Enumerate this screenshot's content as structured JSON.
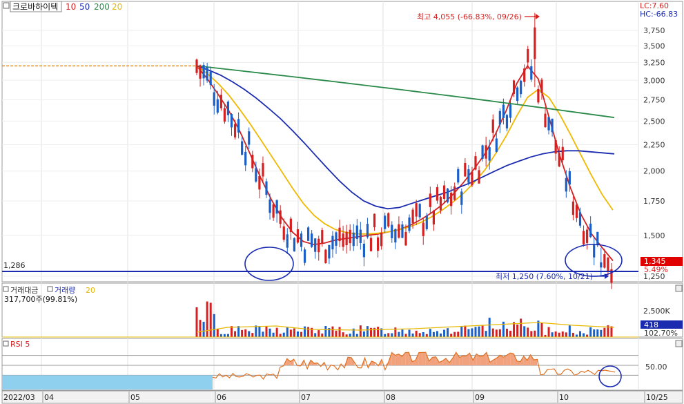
{
  "header": {
    "stock_name": "크로바하이텍",
    "ma_labels": [
      {
        "label": "10",
        "color": "#d42020"
      },
      {
        "label": "50",
        "color": "#1a2bb0"
      },
      {
        "label": "200",
        "color": "#2a8a4a"
      },
      {
        "label": "20",
        "color": "#e8b800"
      }
    ],
    "lc": "LC:7.60",
    "hc": "HC:-66.83"
  },
  "price_panel": {
    "high_annotation": "최고 4,055 (-66.83%, 09/26)",
    "low_annotation": "최저 1,250 (7.60%, 10/21)",
    "level_label": "1,286",
    "current_price": "1,345",
    "current_change": "5.49%",
    "y_ticks": [
      "3,750",
      "3,500",
      "3,250",
      "3,000",
      "2,750",
      "2,500",
      "2,250",
      "2,000",
      "1,750",
      "1,500",
      "1,250"
    ]
  },
  "volume_panel": {
    "label_a": "거래대금",
    "label_b": "거래량",
    "label_c": "20",
    "summary": "317,700주(99.81%)",
    "y_tick": "2,500K",
    "current_value": "418",
    "current_pct": "102.70%"
  },
  "rsi_panel": {
    "label": "RSI 5",
    "y_tick": "50.00"
  },
  "x_axis": {
    "labels": [
      "2022/03",
      "04",
      "05",
      "06",
      "07",
      "08",
      "09",
      "10",
      "10/25"
    ]
  },
  "colors": {
    "up": "#d42020",
    "down": "#1a5fc8",
    "ma10": "#d42020",
    "ma20": "#f0b800",
    "ma50": "#1a2bb0",
    "ma200": "#2a8a4a",
    "level": "#1a2bb0",
    "rsi_fill_low": "#8fd0ee",
    "rsi_fill_high": "#f1a27c"
  },
  "chart_data": {
    "type": "candlestick",
    "title": "크로바하이텍",
    "y_scale": "log",
    "ylim": [
      1200,
      4200
    ],
    "events": [
      {
        "date": "09/26",
        "type": "high",
        "value": 4055
      },
      {
        "date": "10/21",
        "type": "low",
        "value": 1250
      }
    ],
    "reference_level": 1286,
    "last_close": 1345,
    "series": [
      {
        "name": "10",
        "values": [
          3200,
          3020,
          2820,
          2620,
          2400,
          2160,
          1940,
          1760,
          1620,
          1520,
          1460,
          1440,
          1450,
          1470,
          1480,
          1490,
          1500,
          1510,
          1525,
          1540,
          1570,
          1610,
          1660,
          1720,
          1800,
          1900,
          2020,
          2160,
          2360,
          2620,
          2960,
          3200,
          3020,
          2550,
          2150,
          1860,
          1650,
          1510,
          1420,
          1340
        ]
      },
      {
        "name": "20",
        "values": [
          3200,
          3090,
          2960,
          2810,
          2640,
          2470,
          2300,
          2140,
          1990,
          1850,
          1730,
          1640,
          1580,
          1540,
          1520,
          1510,
          1510,
          1515,
          1525,
          1540,
          1560,
          1590,
          1630,
          1680,
          1740,
          1810,
          1900,
          2010,
          2160,
          2340,
          2560,
          2780,
          2880,
          2780,
          2580,
          2360,
          2150,
          1960,
          1800,
          1680
        ]
      },
      {
        "name": "50",
        "values": [
          3200,
          3140,
          3070,
          2980,
          2880,
          2770,
          2650,
          2530,
          2400,
          2270,
          2140,
          2020,
          1910,
          1820,
          1750,
          1710,
          1690,
          1700,
          1730,
          1760,
          1790,
          1820,
          1860,
          1900,
          1950,
          2000,
          2050,
          2090,
          2130,
          2160,
          2180,
          2190,
          2190,
          2180,
          2170,
          2160
        ]
      },
      {
        "name": "200",
        "values": [
          3200,
          3180,
          3160,
          3140,
          3120,
          3100,
          3080,
          3060,
          3040,
          3020,
          3000,
          2980,
          2960,
          2940,
          2920,
          2900,
          2880,
          2860,
          2840,
          2820,
          2800,
          2780,
          2760,
          2740,
          2720,
          2700,
          2680,
          2660,
          2640,
          2620,
          2600,
          2580,
          2560,
          2540
        ]
      }
    ],
    "rsi": {
      "reference": 50,
      "ylim": [
        0,
        100
      ]
    },
    "x_labels": [
      "2022/03",
      "04",
      "05",
      "06",
      "07",
      "08",
      "09",
      "10",
      "10/25"
    ]
  }
}
